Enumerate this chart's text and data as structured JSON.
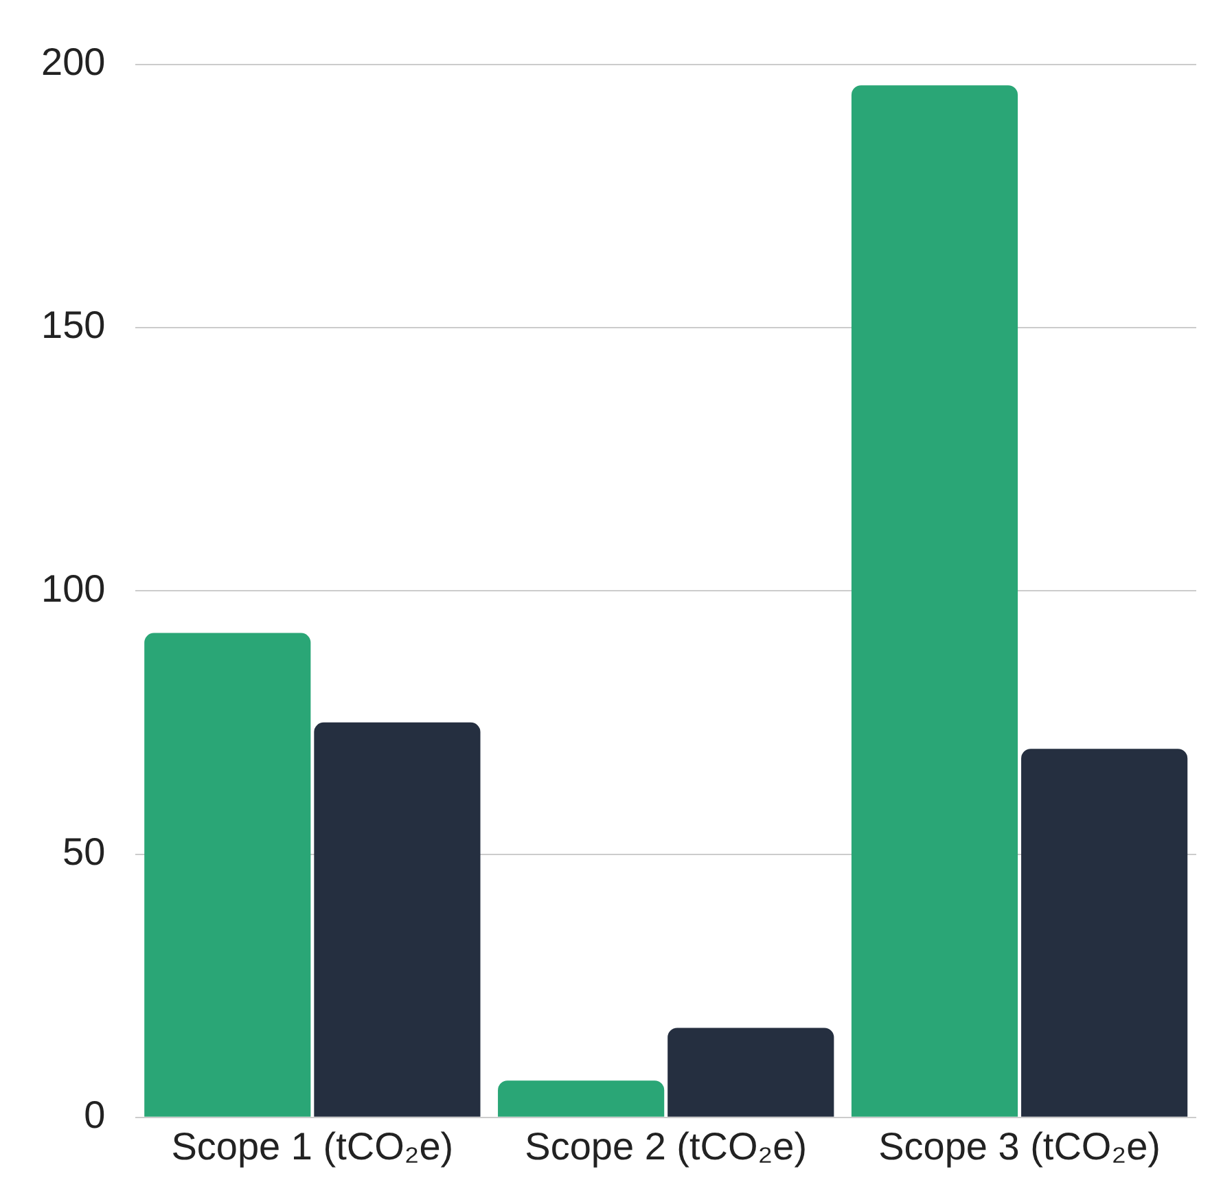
{
  "chart_data": {
    "type": "bar",
    "categories": [
      "Scope 1 (tCO₂e)",
      "Scope 2 (tCO₂e)",
      "Scope 3 (tCO₂e)"
    ],
    "series": [
      {
        "color": "#2aa676",
        "values": [
          92,
          7,
          196
        ]
      },
      {
        "color": "#252f40",
        "values": [
          75,
          17,
          70
        ]
      }
    ],
    "ylim": [
      0,
      200
    ],
    "yticks": [
      0,
      50,
      100,
      150,
      200
    ],
    "grid": "y",
    "legend": false
  }
}
